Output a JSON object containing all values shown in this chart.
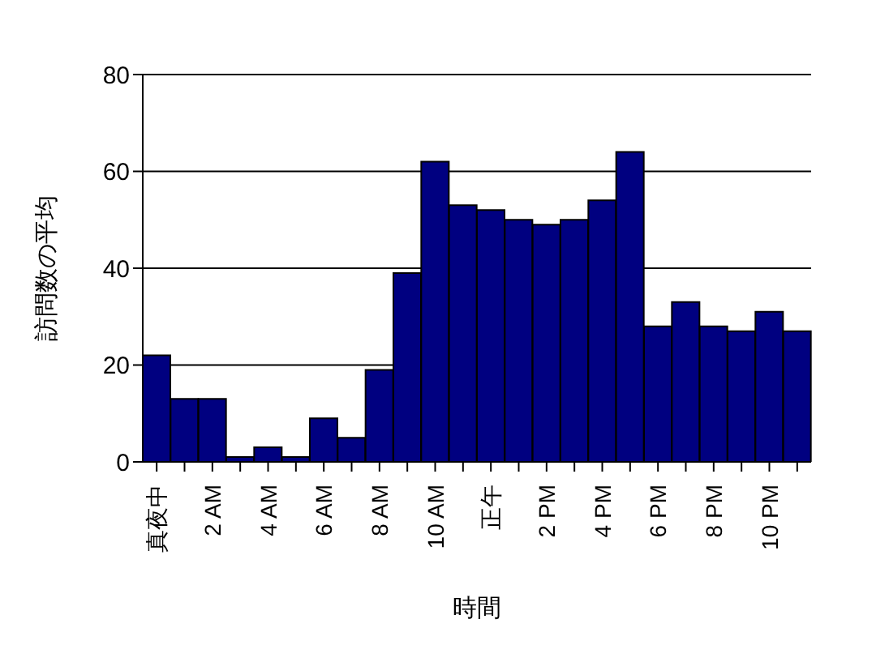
{
  "chart_data": {
    "type": "bar",
    "xlabel": "時間",
    "ylabel": "訪問数の平均",
    "categories": [
      "真夜中",
      null,
      "2 AM",
      null,
      "4 AM",
      null,
      "6 AM",
      null,
      "8 AM",
      null,
      "10 AM",
      null,
      "正午",
      null,
      "2 PM",
      null,
      "4 PM",
      null,
      "6 PM",
      null,
      "8 PM",
      null,
      "10 PM",
      null
    ],
    "values": [
      22,
      13,
      13,
      1,
      3,
      1,
      9,
      5,
      19,
      39,
      62,
      53,
      52,
      50,
      49,
      50,
      54,
      64,
      28,
      33,
      28,
      27,
      31,
      27
    ],
    "color": "#000080",
    "ylim": [
      0,
      80
    ],
    "yticks": [
      0,
      20,
      40,
      60,
      80
    ],
    "grid": "y"
  }
}
